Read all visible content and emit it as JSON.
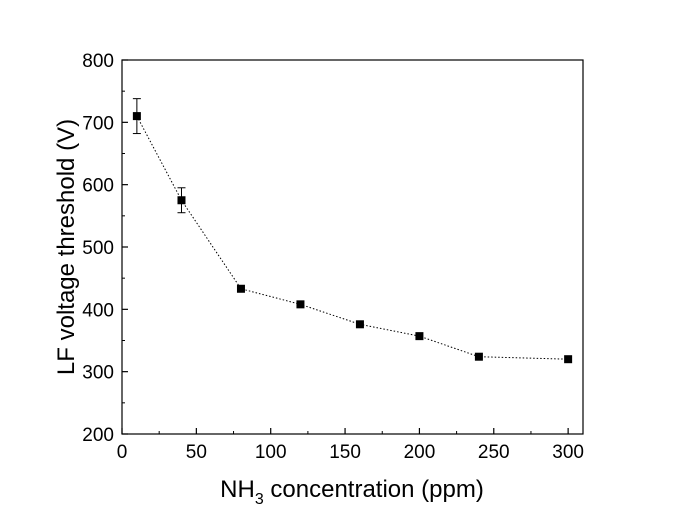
{
  "chart_data": {
    "type": "line",
    "title": "",
    "xlabel": {
      "prefix": "NH",
      "subscript": "3",
      "suffix": " concentration (ppm)"
    },
    "ylabel": "LF voltage threshold (V)",
    "xlim": [
      0,
      310
    ],
    "ylim": [
      200,
      800
    ],
    "xticks": [
      0,
      50,
      100,
      150,
      200,
      250,
      300
    ],
    "yticks": [
      200,
      300,
      400,
      500,
      600,
      700,
      800
    ],
    "grid": false,
    "legend": "none",
    "series": [
      {
        "x": [
          10,
          40,
          80,
          120,
          160,
          200,
          240,
          300
        ],
        "y": [
          710,
          575,
          433,
          408,
          376,
          357,
          324,
          320
        ],
        "error": [
          28,
          20,
          0,
          0,
          0,
          0,
          0,
          0
        ],
        "marker": "square",
        "line_style": "dotted",
        "color": "#000000"
      }
    ]
  }
}
